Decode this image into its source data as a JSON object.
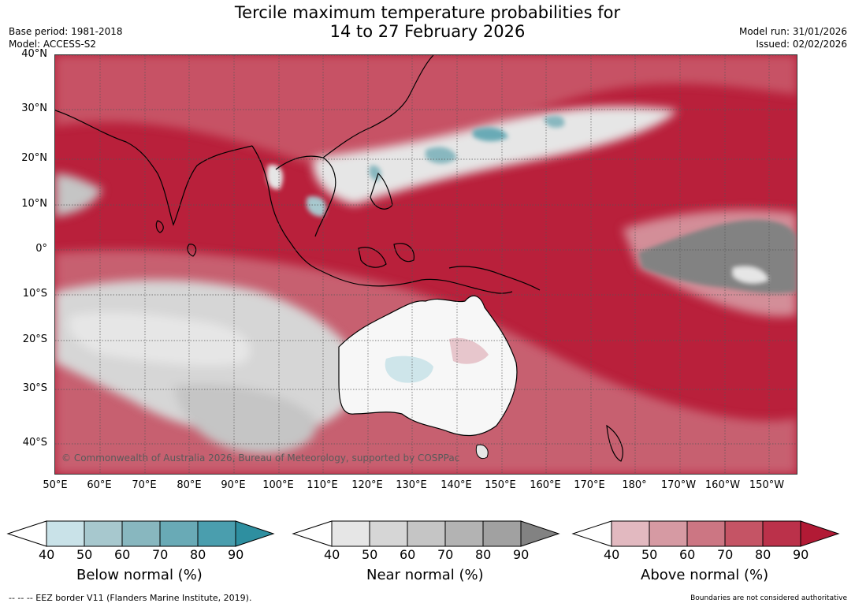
{
  "title_line1": "Tercile maximum temperature probabilities for",
  "title_line2": "14 to 27 February 2026",
  "base_period": "Base period: 1981-2018",
  "model": "Model: ACCESS-S2",
  "model_run": "Model run: 31/01/2026",
  "issued": "Issued: 02/02/2026",
  "lat_labels": [
    "40°N",
    "30°N",
    "20°N",
    "10°N",
    "0°",
    "10°S",
    "20°S",
    "30°S",
    "40°S"
  ],
  "lon_labels": [
    "50°E",
    "60°E",
    "70°E",
    "80°E",
    "90°E",
    "100°E",
    "110°E",
    "120°E",
    "130°E",
    "140°E",
    "150°E",
    "160°E",
    "170°E",
    "180°",
    "170°W",
    "160°W",
    "150°W"
  ],
  "copyright": "© Commonwealth of Australia 2026, Bureau of Meteorology, supported by COSPPac",
  "colorbars": [
    {
      "title": "Below normal (%)",
      "ticks": [
        "40",
        "50",
        "60",
        "70",
        "80",
        "90"
      ],
      "colors": [
        "#c9e2e8",
        "#a7c8ce",
        "#88b7bf",
        "#69aab6",
        "#4a9eae",
        "#2e8fa0"
      ]
    },
    {
      "title": "Near normal (%)",
      "ticks": [
        "40",
        "50",
        "60",
        "70",
        "80",
        "90"
      ],
      "colors": [
        "#e6e6e6",
        "#d6d6d6",
        "#c5c5c5",
        "#b3b3b3",
        "#a1a1a1",
        "#828282"
      ]
    },
    {
      "title": "Above normal (%)",
      "ticks": [
        "40",
        "50",
        "60",
        "70",
        "80",
        "90"
      ],
      "colors": [
        "#e2b9c0",
        "#d69aa3",
        "#cc7683",
        "#c55465",
        "#bb314a",
        "#b21a35"
      ]
    }
  ],
  "footer_left": "--  --  -- EEZ border V11 (Flanders Marine Institute, 2019).",
  "footer_right": "Boundaries are not considered authoritative"
}
